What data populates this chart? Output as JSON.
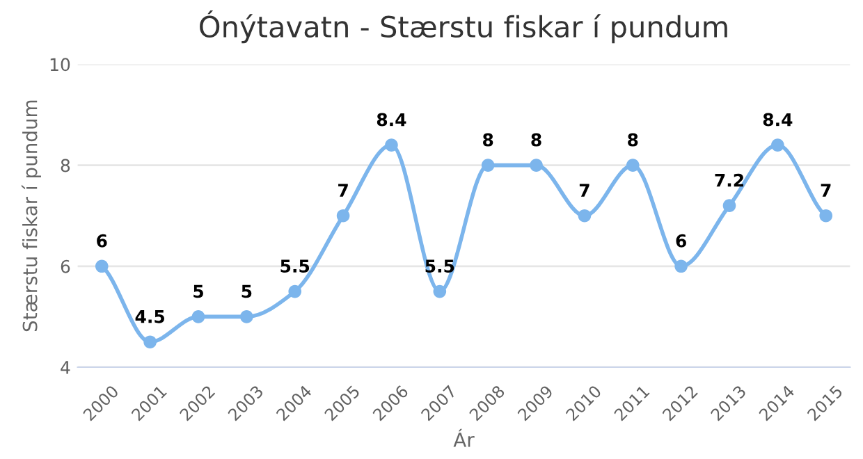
{
  "chart_data": {
    "type": "line",
    "title": "Ónýtavatn - Stærstu fiskar í pundum",
    "xlabel": "Ár",
    "ylabel": "Stærstu fiskar í pundum",
    "categories": [
      "2000",
      "2001",
      "2002",
      "2003",
      "2004",
      "2005",
      "2006",
      "2007",
      "2008",
      "2009",
      "2010",
      "2011",
      "2012",
      "2013",
      "2014",
      "2015"
    ],
    "series": [
      {
        "color": "#7cb5ec",
        "values": [
          6,
          4.5,
          5,
          5,
          5.5,
          7,
          8.4,
          5.5,
          8,
          8,
          7,
          8,
          6,
          7.2,
          8.4,
          7
        ]
      }
    ],
    "ylim": [
      4,
      10
    ],
    "yticks": [
      4,
      6,
      8,
      10
    ],
    "grid": "y",
    "marker": "circle",
    "line_style": "solid",
    "data_labels": true,
    "legend": false
  }
}
